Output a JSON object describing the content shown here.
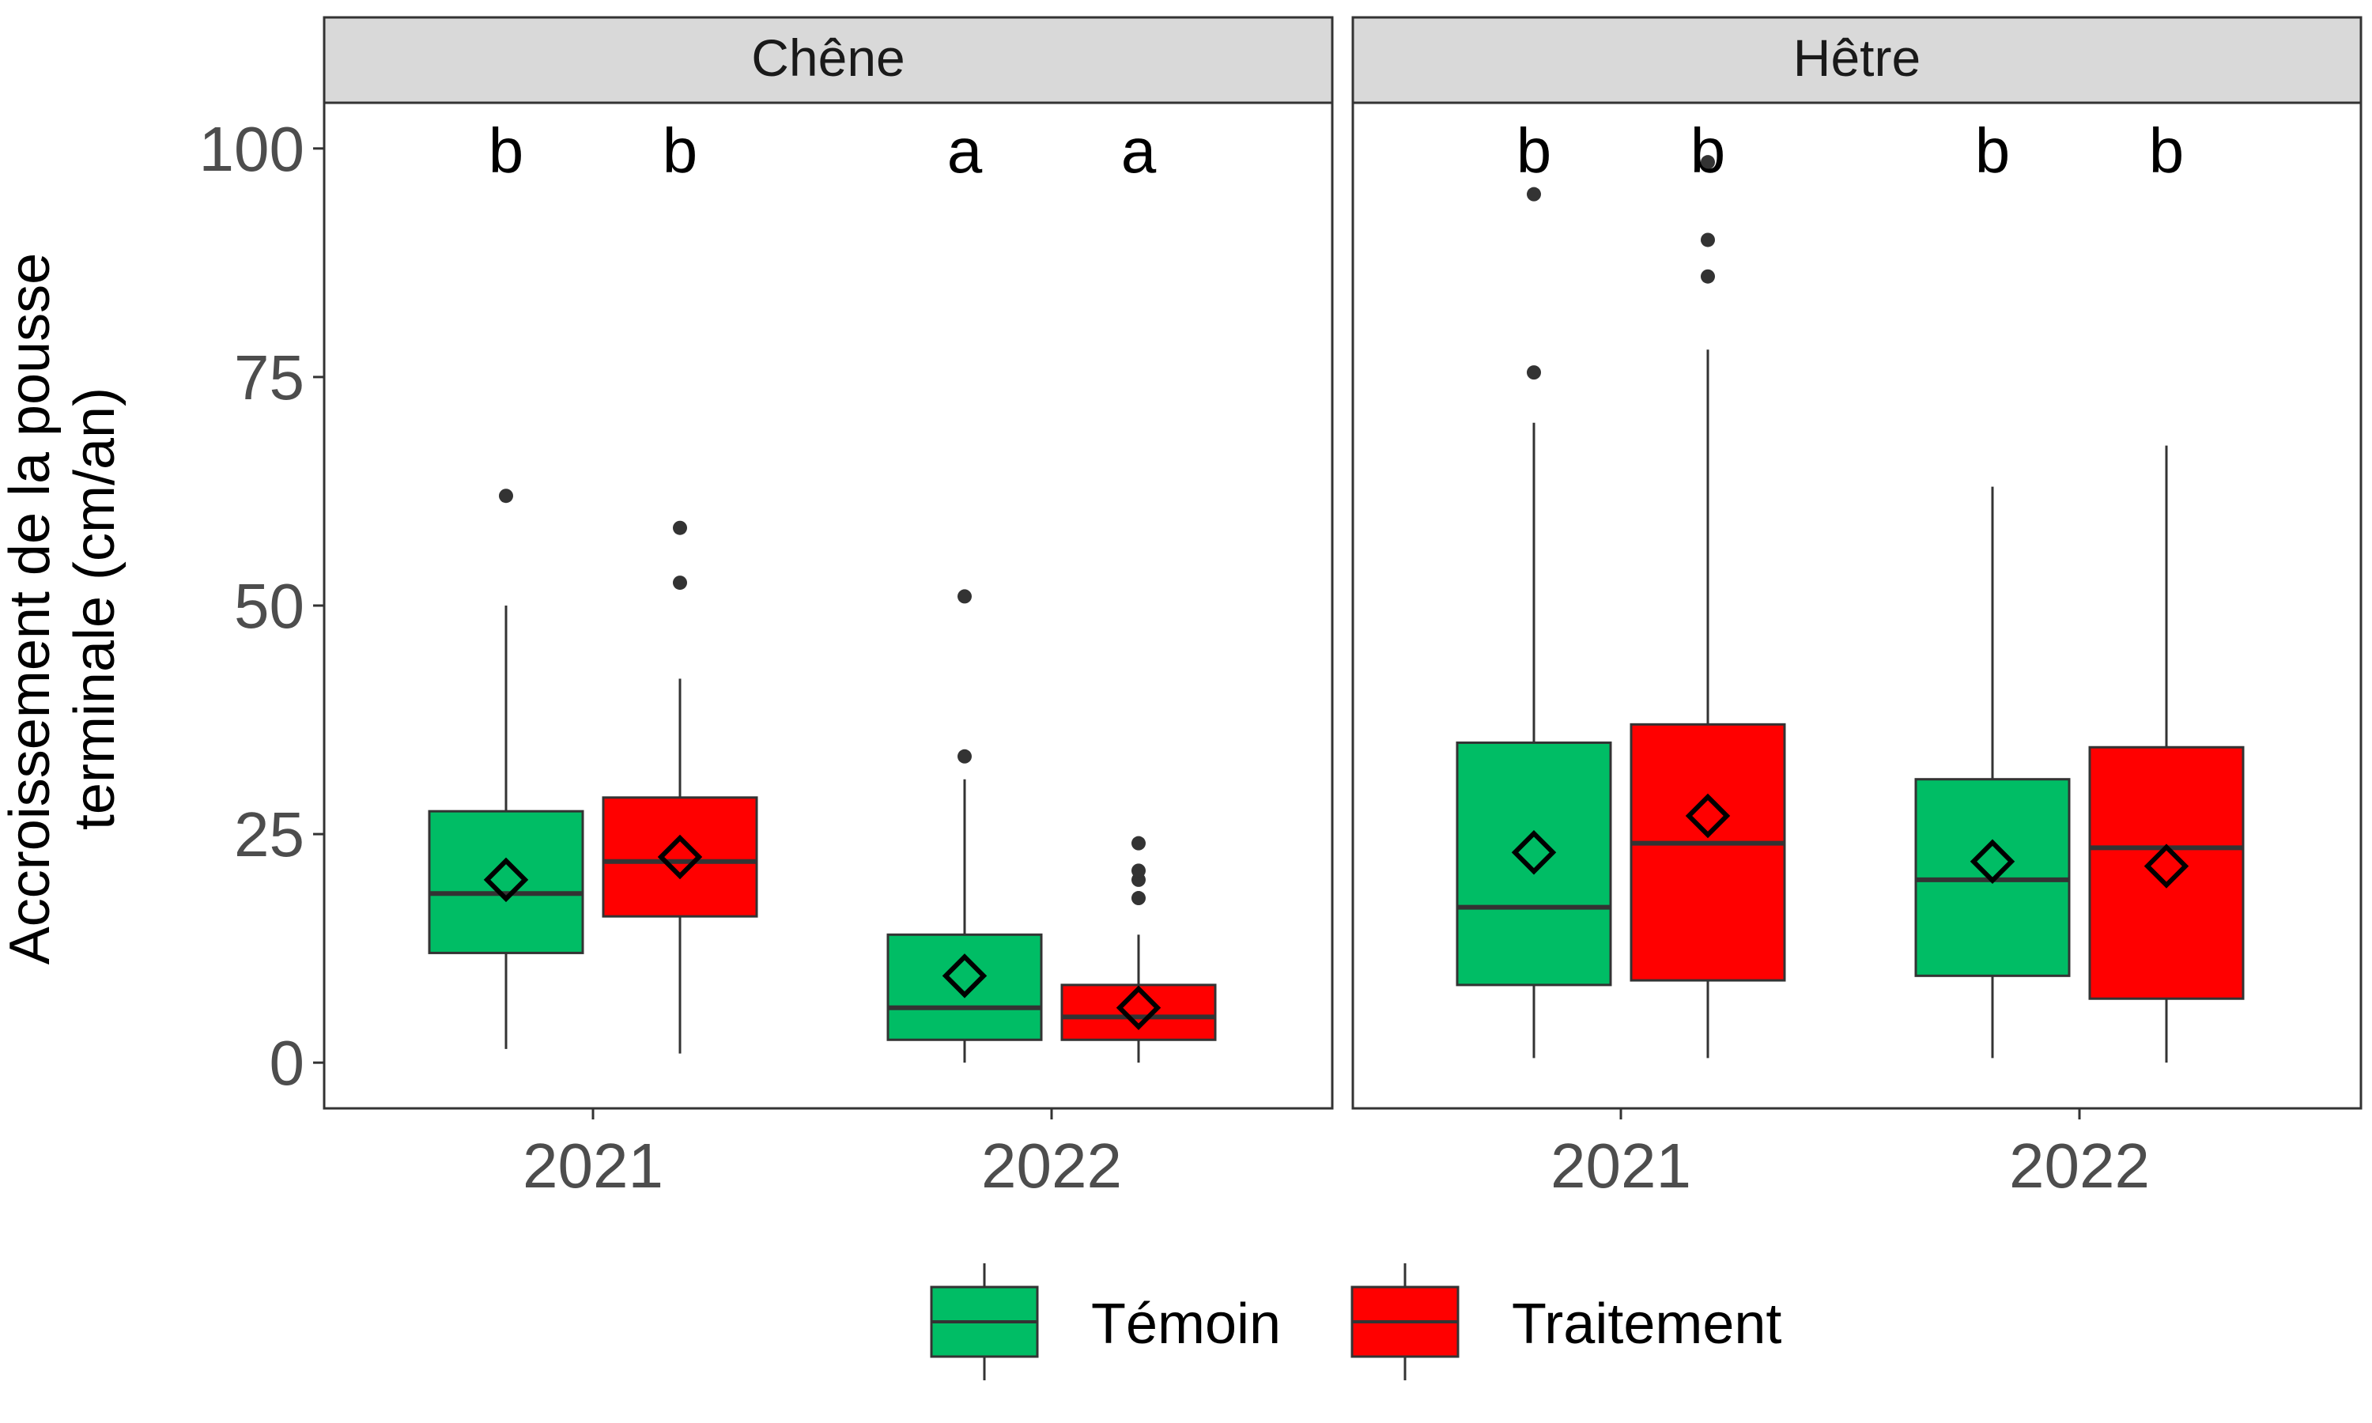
{
  "chart_data": {
    "type": "boxplot",
    "ylabel_lines": [
      "Accroissement de la pousse",
      "terminale (cm/an)"
    ],
    "ylim": [
      -5,
      105
    ],
    "yticks": [
      0,
      25,
      50,
      75,
      100
    ],
    "categories": [
      "2021",
      "2022"
    ],
    "legend": {
      "position": "bottom",
      "entries": [
        {
          "label": "Témoin",
          "color": "#00BD65"
        },
        {
          "label": "Traitement",
          "color": "#FF0000"
        }
      ]
    },
    "panels": [
      {
        "title": "Chêne",
        "groups": [
          {
            "category": "2021",
            "series": "Témoin",
            "letter": "b",
            "whisker_low": 1.5,
            "q1": 12,
            "median": 18.5,
            "q3": 27.5,
            "whisker_high": 50,
            "mean": 20,
            "outliers": [
              62
            ]
          },
          {
            "category": "2021",
            "series": "Traitement",
            "letter": "b",
            "whisker_low": 1,
            "q1": 16,
            "median": 22,
            "q3": 29,
            "whisker_high": 42,
            "mean": 22.5,
            "outliers": [
              52.5,
              58.5
            ]
          },
          {
            "category": "2022",
            "series": "Témoin",
            "letter": "a",
            "whisker_low": 0,
            "q1": 2.5,
            "median": 6,
            "q3": 14,
            "whisker_high": 31,
            "mean": 9.5,
            "outliers": [
              33.5,
              51
            ]
          },
          {
            "category": "2022",
            "series": "Traitement",
            "letter": "a",
            "whisker_low": 0,
            "q1": 2.5,
            "median": 5,
            "q3": 8.5,
            "whisker_high": 14,
            "mean": 6,
            "outliers": [
              18,
              20,
              21,
              24
            ]
          }
        ]
      },
      {
        "title": "Hêtre",
        "groups": [
          {
            "category": "2021",
            "series": "Témoin",
            "letter": "b",
            "whisker_low": 0.5,
            "q1": 8.5,
            "median": 17,
            "q3": 35,
            "whisker_high": 70,
            "mean": 23,
            "outliers": [
              75.5,
              95
            ]
          },
          {
            "category": "2021",
            "series": "Traitement",
            "letter": "b",
            "whisker_low": 0.5,
            "q1": 9,
            "median": 24,
            "q3": 37,
            "whisker_high": 78,
            "mean": 27,
            "outliers": [
              86,
              90,
              98.5
            ]
          },
          {
            "category": "2022",
            "series": "Témoin",
            "letter": "b",
            "whisker_low": 0.5,
            "q1": 9.5,
            "median": 20,
            "q3": 31,
            "whisker_high": 63,
            "mean": 22,
            "outliers": []
          },
          {
            "category": "2022",
            "series": "Traitement",
            "letter": "b",
            "whisker_low": 0,
            "q1": 7,
            "median": 23.5,
            "q3": 34.5,
            "whisker_high": 67.5,
            "mean": 21.5,
            "outliers": []
          }
        ]
      }
    ]
  }
}
